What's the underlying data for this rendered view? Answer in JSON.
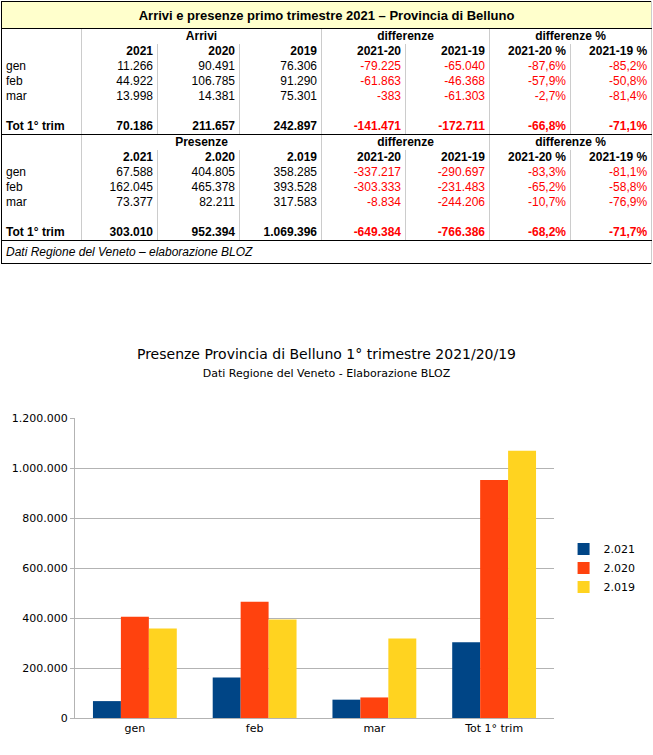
{
  "table": {
    "title": "Arrivi e presenze primo trimestre 2021 – Provincia di Belluno",
    "sections": [
      {
        "group_header": [
          "",
          "Arrivi",
          "differenze",
          "differenze %"
        ],
        "columns": [
          "",
          "2021",
          "2020",
          "2019",
          "2021-20",
          "2021-19",
          "2021-20 %",
          "2021-19 %"
        ],
        "rows": [
          [
            "gen",
            "11.266",
            "90.491",
            "76.306",
            "-79.225",
            "-65.040",
            "-87,6%",
            "-85,2%"
          ],
          [
            "feb",
            "44.922",
            "106.785",
            "91.290",
            "-61.863",
            "-46.368",
            "-57,9%",
            "-50,8%"
          ],
          [
            "mar",
            "13.998",
            "14.381",
            "75.301",
            "-383",
            "-61.303",
            "-2,7%",
            "-81,4%"
          ]
        ],
        "total": [
          "Tot 1° trim",
          "70.186",
          "211.657",
          "242.897",
          "-141.471",
          "-172.711",
          "-66,8%",
          "-71,1%"
        ]
      },
      {
        "group_header": [
          "",
          "Presenze",
          "differenze",
          "differenze %"
        ],
        "columns": [
          "",
          "2.021",
          "2.020",
          "2.019",
          "2021-20",
          "2021-19",
          "2021-20 %",
          "2021-19 %"
        ],
        "rows": [
          [
            "gen",
            "67.588",
            "404.805",
            "358.285",
            "-337.217",
            "-290.697",
            "-83,3%",
            "-81,1%"
          ],
          [
            "feb",
            "162.045",
            "465.378",
            "393.528",
            "-303.333",
            "-231.483",
            "-65,2%",
            "-58,8%"
          ],
          [
            "mar",
            "73.377",
            "82.211",
            "317.583",
            "-8.834",
            "-244.206",
            "-10,7%",
            "-76,9%"
          ]
        ],
        "total": [
          "Tot 1° trim",
          "303.010",
          "952.394",
          "1.069.396",
          "-649.384",
          "-766.386",
          "-68,2%",
          "-71,7%"
        ]
      }
    ],
    "footer": "Dati Regione del Veneto – elaborazione BLOZ"
  },
  "chart_data": {
    "type": "bar",
    "title": "Presenze Provincia di Belluno 1° trimestre 2021/20/19",
    "subtitle": "Dati Regione del Veneto - Elaborazione BLOZ",
    "categories": [
      "gen",
      "feb",
      "mar",
      "Tot 1° trim"
    ],
    "series": [
      {
        "name": "2.021",
        "color": "#004586",
        "values": [
          67588,
          162045,
          73377,
          303010
        ]
      },
      {
        "name": "2.020",
        "color": "#ff420e",
        "values": [
          404805,
          465378,
          82211,
          952394
        ]
      },
      {
        "name": "2.019",
        "color": "#ffd320",
        "values": [
          358285,
          393528,
          317583,
          1069396
        ]
      }
    ],
    "ylim": [
      0,
      1200000
    ],
    "yticks": [
      0,
      {
        "value": 200000,
        "label": "200.000"
      },
      {
        "value": 400000,
        "label": "400.000"
      },
      {
        "value": 600000,
        "label": "600.000"
      },
      {
        "value": 800000,
        "label": "800.000"
      },
      {
        "value": 1000000,
        "label": "1.000.000"
      },
      {
        "value": 1200000,
        "label": "1.200.000"
      }
    ],
    "grid": true,
    "legend": "right"
  }
}
